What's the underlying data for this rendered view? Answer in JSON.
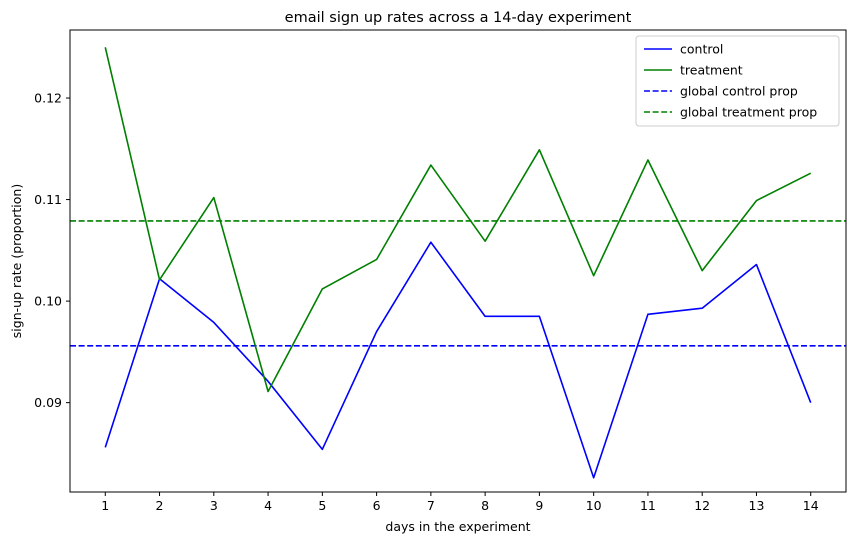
{
  "chart_data": {
    "type": "line",
    "title": "email sign up rates across a 14-day experiment",
    "xlabel": "days in the experiment",
    "ylabel": "sign-up rate (proportion)",
    "x": [
      1,
      2,
      3,
      4,
      5,
      6,
      7,
      8,
      9,
      10,
      11,
      12,
      13,
      14
    ],
    "x_tick_labels": [
      "1",
      "2",
      "3",
      "4",
      "5",
      "6",
      "7",
      "8",
      "9",
      "10",
      "11",
      "12",
      "13",
      "14"
    ],
    "y_ticks": [
      0.09,
      0.1,
      0.11,
      0.12
    ],
    "y_tick_labels": [
      "0.09",
      "0.10",
      "0.11",
      "0.12"
    ],
    "xlim": [
      0.35,
      14.65
    ],
    "ylim": [
      0.0812,
      0.1267
    ],
    "grid": false,
    "legend_position": "top-right",
    "series": [
      {
        "name": "control",
        "style": "solid",
        "color": "#0000ff",
        "values": [
          0.0856,
          0.1022,
          0.0979,
          0.0921,
          0.0854,
          0.097,
          0.1058,
          0.0985,
          0.0985,
          0.0826,
          0.0987,
          0.0993,
          0.1036,
          0.09
        ]
      },
      {
        "name": "treatment",
        "style": "solid",
        "color": "#008000",
        "values": [
          0.125,
          0.1021,
          0.1102,
          0.0911,
          0.1012,
          0.1041,
          0.1134,
          0.1059,
          0.1149,
          0.1025,
          0.1139,
          0.103,
          0.1099,
          0.1126
        ]
      }
    ],
    "reference_lines": [
      {
        "name": "global control prop",
        "style": "dashed",
        "color": "#0000ff",
        "y": 0.0956
      },
      {
        "name": "global treatment prop",
        "style": "dashed",
        "color": "#008000",
        "y": 0.1079
      }
    ]
  }
}
